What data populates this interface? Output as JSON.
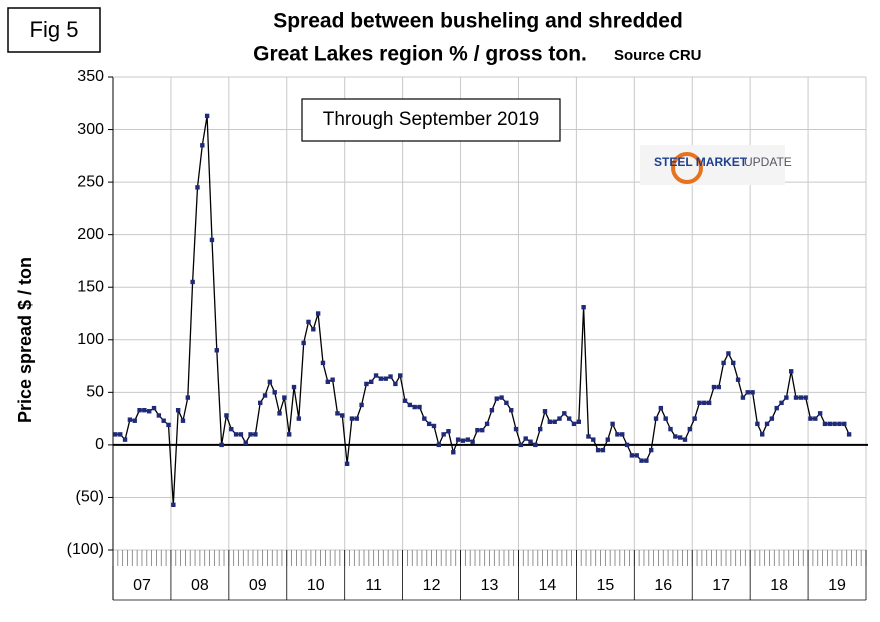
{
  "chart_data": {
    "type": "line",
    "figure_label": "Fig 5",
    "title": "Spread between busheling and shredded",
    "subtitle": "Great Lakes region % / gross ton.",
    "source": "Source CRU",
    "annotation": "Through September 2019",
    "logo_bold": "STEEL MARKET",
    "logo_light": "UPDATE",
    "y_label": "Price spread $ / ton",
    "year_labels": [
      "07",
      "08",
      "09",
      "10",
      "11",
      "12",
      "13",
      "14",
      "15",
      "16",
      "17",
      "18",
      "19"
    ],
    "color": "#1f2a7a",
    "line_color": "#000000",
    "grid": true,
    "ylim": [
      -100,
      350
    ],
    "yticks": [
      {
        "value": -100,
        "label": "(100)"
      },
      {
        "value": -50,
        "label": "(50)"
      },
      0,
      50,
      100,
      150,
      200,
      250,
      300,
      350
    ],
    "values": [
      10,
      10,
      5,
      24,
      23,
      33,
      33,
      32,
      35,
      28,
      23,
      19,
      -57,
      33,
      23,
      45,
      155,
      245,
      285,
      313,
      195,
      90,
      0,
      28,
      15,
      10,
      10,
      2,
      10,
      10,
      40,
      47,
      60,
      50,
      30,
      45,
      10,
      55,
      25,
      97,
      117,
      110,
      125,
      78,
      60,
      62,
      30,
      28,
      -18,
      25,
      25,
      38,
      58,
      60,
      66,
      63,
      63,
      65,
      58,
      66,
      42,
      38,
      36,
      36,
      25,
      20,
      18,
      0,
      10,
      13,
      -7,
      5,
      4,
      5,
      3,
      14,
      14,
      20,
      33,
      44,
      45,
      40,
      33,
      15,
      0,
      6,
      3,
      0,
      15,
      32,
      22,
      22,
      25,
      30,
      25,
      20,
      22,
      131,
      8,
      5,
      -5,
      -5,
      5,
      20,
      10,
      10,
      0,
      -10,
      -10,
      -15,
      -15,
      -5,
      25,
      35,
      25,
      15,
      8,
      7,
      5,
      15,
      25,
      40,
      40,
      40,
      55,
      55,
      78,
      87,
      78,
      62,
      45,
      50,
      50,
      20,
      10,
      20,
      25,
      35,
      40,
      45,
      70,
      45,
      45,
      45,
      25,
      25,
      30,
      20,
      20,
      20,
      20,
      20,
      10
    ]
  }
}
